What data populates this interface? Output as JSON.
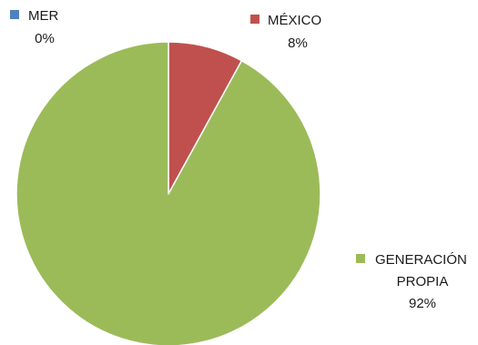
{
  "chart_data": {
    "type": "pie",
    "title": "",
    "slices": [
      {
        "name": "MER",
        "value": 0,
        "label": "0%",
        "color": "#4f81bd"
      },
      {
        "name": "MÉXICO",
        "value": 8,
        "label": "8%",
        "color": "#c0504d"
      },
      {
        "name": "GENERACIÓN PROPIA",
        "name_lines": [
          "GENERACIÓN",
          "PROPIA"
        ],
        "value": 92,
        "label": "92%",
        "color": "#9bbb59"
      }
    ]
  }
}
